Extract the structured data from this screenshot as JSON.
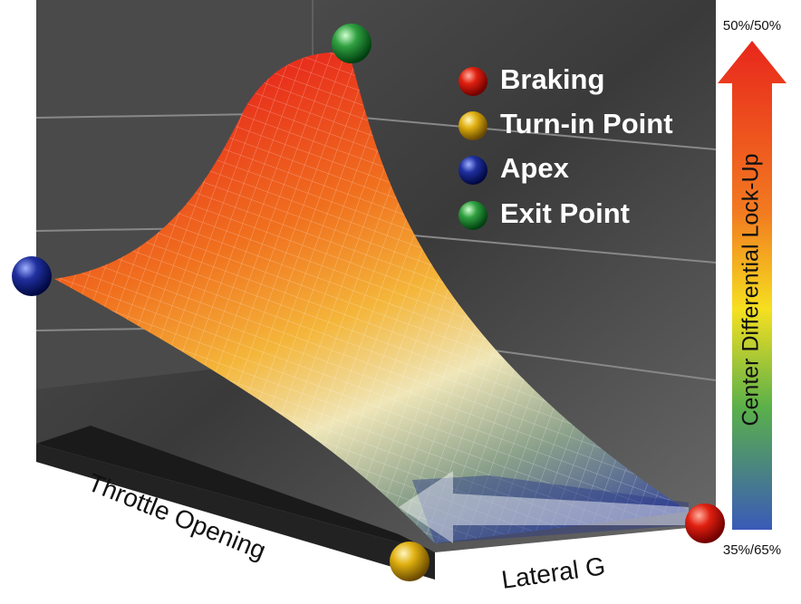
{
  "legend": [
    {
      "label": "Braking"
    },
    {
      "label": "Turn-in Point"
    },
    {
      "label": "Apex"
    },
    {
      "label": "Exit Point"
    }
  ],
  "axes": {
    "throttle": "Throttle Opening",
    "lateral": "Lateral G"
  },
  "scale": {
    "title": "Center Differential Lock-Up",
    "top": "50%/50%",
    "bottom": "35%/65%"
  }
}
